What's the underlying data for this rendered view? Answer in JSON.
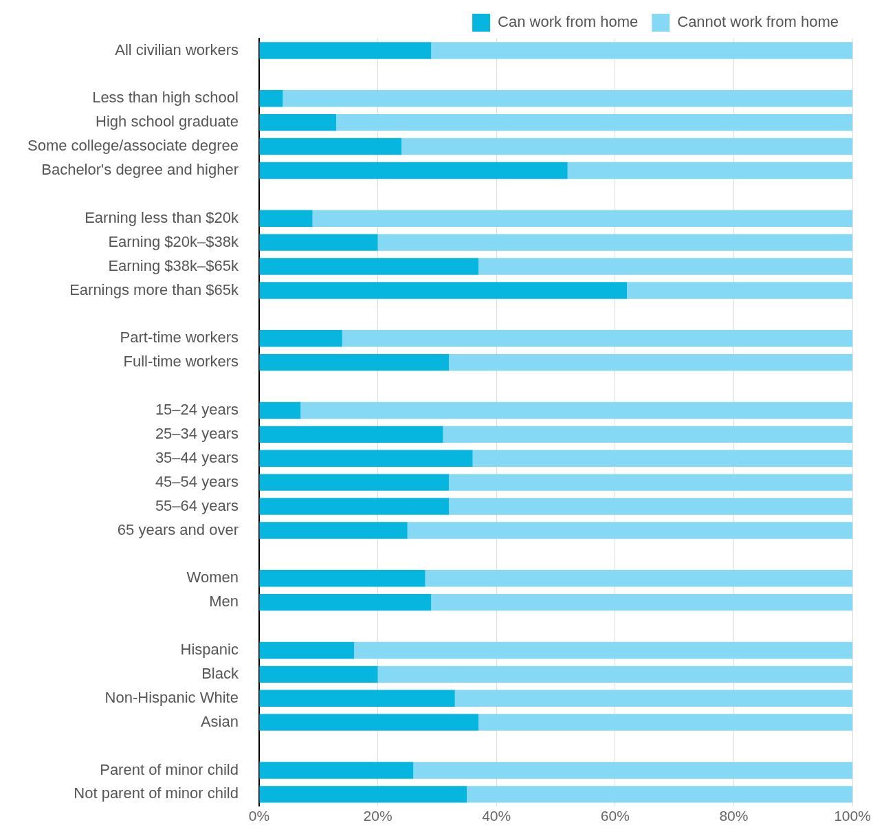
{
  "chart_data": {
    "type": "bar",
    "orientation": "horizontal",
    "stacked": true,
    "categories": [
      "All civilian workers",
      null,
      "Less than high school",
      "High school graduate",
      "Some college/associate degree",
      "Bachelor's degree and higher",
      null,
      "Earning less than $20k",
      "Earning $20k–$38k",
      "Earning $38k–$65k",
      "Earnings more than $65k",
      null,
      "Part-time workers",
      "Full-time workers",
      null,
      "15–24 years",
      "25–34 years",
      "35–44 years",
      "45–54 years",
      "55–64 years",
      "65 years and over",
      null,
      "Women",
      "Men",
      null,
      "Hispanic",
      "Black",
      "Non-Hispanic White",
      "Asian",
      null,
      "Parent of minor child",
      "Not parent of minor child"
    ],
    "series": [
      {
        "name": "Can work from home",
        "color": "#06b6de",
        "values": [
          29,
          null,
          4,
          13,
          24,
          52,
          null,
          9,
          20,
          37,
          62,
          null,
          14,
          32,
          null,
          7,
          31,
          36,
          32,
          32,
          25,
          null,
          28,
          29,
          null,
          16,
          20,
          33,
          37,
          null,
          26,
          35
        ]
      },
      {
        "name": "Cannot work from home",
        "color": "#86d9f5",
        "values": [
          71,
          null,
          96,
          87,
          76,
          48,
          null,
          91,
          80,
          63,
          38,
          null,
          86,
          68,
          null,
          93,
          69,
          64,
          68,
          68,
          75,
          null,
          72,
          71,
          null,
          84,
          80,
          67,
          63,
          null,
          74,
          65
        ]
      }
    ],
    "xlim": [
      0,
      100
    ],
    "xticks": [
      {
        "value": 0,
        "label": "0%"
      },
      {
        "value": 20,
        "label": "20%"
      },
      {
        "value": 40,
        "label": "40%"
      },
      {
        "value": 60,
        "label": "60%"
      },
      {
        "value": 80,
        "label": "80%"
      },
      {
        "value": 100,
        "label": "100%"
      }
    ],
    "grid": "x",
    "legend": "top"
  }
}
